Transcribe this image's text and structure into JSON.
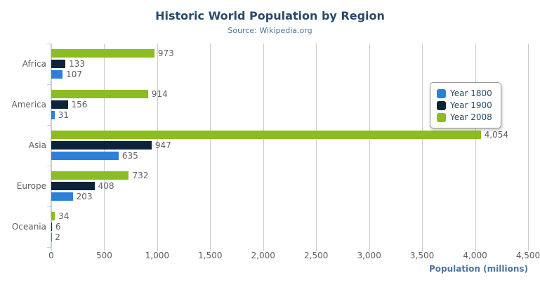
{
  "header": {
    "title": "Historic World Population by Region",
    "subtitle": "Source: Wikipedia.org"
  },
  "export_menu": {
    "icon": "hamburger-icon",
    "color": "#666666"
  },
  "chart_data": {
    "type": "bar",
    "orientation": "horizontal",
    "title": "Historic World Population by Region",
    "subtitle": "Source: Wikipedia.org",
    "categories": [
      "Africa",
      "America",
      "Asia",
      "Europe",
      "Oceania"
    ],
    "series": [
      {
        "name": "Year 1800",
        "color": "#2f7ed8",
        "values": [
          107,
          31,
          635,
          203,
          2
        ]
      },
      {
        "name": "Year 1900",
        "color": "#0d233a",
        "values": [
          133,
          156,
          947,
          408,
          6
        ]
      },
      {
        "name": "Year 2008",
        "color": "#8bbc21",
        "values": [
          973,
          914,
          4054,
          732,
          34
        ]
      }
    ],
    "bar_order_top_to_bottom": [
      "Year 2008",
      "Year 1900",
      "Year 1800"
    ],
    "data_labels": true,
    "xlabel": "Population (millions)",
    "xlim": [
      0,
      4500
    ],
    "xticks": [
      0,
      500,
      1000,
      1500,
      2000,
      2500,
      3000,
      3500,
      4000,
      4500
    ],
    "xtick_labels": [
      "0",
      "500",
      "1,000",
      "1,500",
      "2,000",
      "2,500",
      "3,000",
      "3,500",
      "4,000",
      "4,500"
    ],
    "grid": true,
    "legend_position": "right-inside"
  },
  "colors": {
    "title": "#274b6d",
    "subtitle": "#4d759e",
    "axis_title": "#4d759e",
    "tick_label": "#606060",
    "category_label": "#606060",
    "data_label": "#606060",
    "grid_line": "#cccccc",
    "axis_line": "#c0d0e0",
    "legend_border": "#999999",
    "legend_text": "#274b6d",
    "background": "#ffffff"
  }
}
